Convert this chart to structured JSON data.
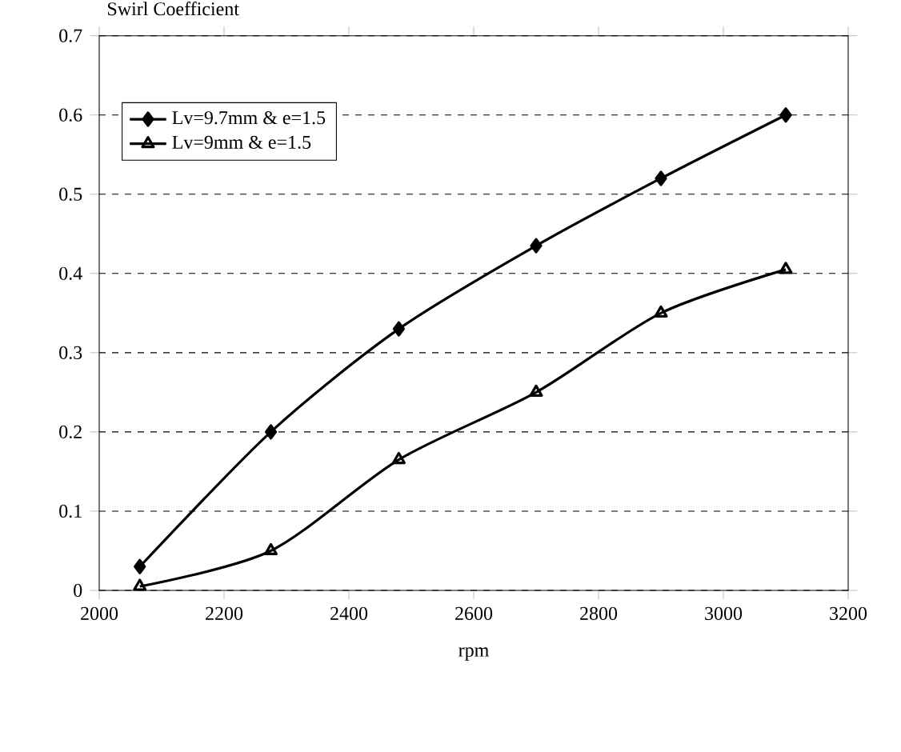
{
  "chart_data": {
    "type": "line",
    "title": "Swirl Coefficient",
    "xlabel": "rpm",
    "x": [
      2065,
      2275,
      2480,
      2700,
      2900,
      3100
    ],
    "series": [
      {
        "name": "Lv=9.7mm & e=1.5",
        "color": "#000000",
        "marker": "diamond",
        "values": [
          0.03,
          0.2,
          0.33,
          0.435,
          0.52,
          0.6
        ]
      },
      {
        "name": "Lv=9mm & e=1.5",
        "color": "#000000",
        "marker": "triangle",
        "values": [
          0.005,
          0.05,
          0.165,
          0.25,
          0.35,
          0.405
        ]
      }
    ],
    "xlim": [
      2000,
      3200
    ],
    "xticks": [
      2000,
      2200,
      2400,
      2600,
      2800,
      3000,
      3200
    ],
    "ylim": [
      0,
      0.7
    ],
    "yticks": [
      0,
      0.1,
      0.2,
      0.3,
      0.4,
      0.5,
      0.6,
      0.7
    ],
    "grid": "y",
    "legend": "top left",
    "line_style": "solid"
  }
}
